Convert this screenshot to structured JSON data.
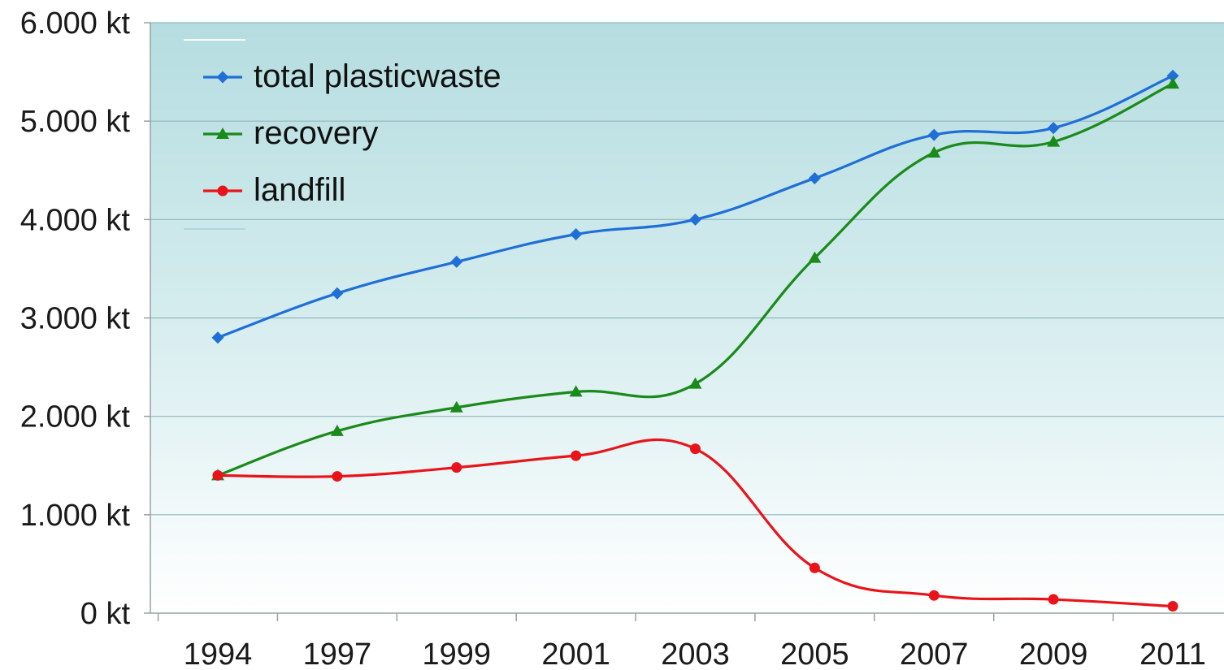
{
  "chart_data": {
    "type": "line",
    "title": "",
    "xlabel": "",
    "ylabel": "",
    "x": [
      "1994",
      "1997",
      "1999",
      "2001",
      "2003",
      "2005",
      "2007",
      "2009",
      "2011"
    ],
    "y_ticks": [
      {
        "value": 0,
        "label": "0 kt"
      },
      {
        "value": 1000,
        "label": "1.000 kt"
      },
      {
        "value": 2000,
        "label": "2.000 kt"
      },
      {
        "value": 3000,
        "label": "3.000 kt"
      },
      {
        "value": 4000,
        "label": "4.000 kt"
      },
      {
        "value": 5000,
        "label": "5.000 kt"
      },
      {
        "value": 6000,
        "label": "6.000 kt"
      }
    ],
    "ylim": [
      0,
      6000
    ],
    "grid": true,
    "legend_position": "top-left",
    "background": {
      "top": "#b5dde0",
      "bottom": "#ffffff"
    },
    "series": [
      {
        "name": "total plastic waste",
        "legend_label": "total plasticwaste",
        "color": "#1f6fd6",
        "marker": "diamond",
        "values": [
          2800,
          3250,
          3570,
          3850,
          4000,
          4420,
          4860,
          4930,
          5460
        ]
      },
      {
        "name": "recovery",
        "legend_label": "recovery",
        "color": "#1a8a1a",
        "marker": "triangle",
        "values": [
          1400,
          1850,
          2090,
          2250,
          2330,
          3610,
          4680,
          4790,
          5380
        ]
      },
      {
        "name": "landfill",
        "legend_label": "landfill",
        "color": "#e8141a",
        "marker": "circle",
        "values": [
          1400,
          1390,
          1480,
          1600,
          1670,
          460,
          180,
          140,
          70
        ]
      }
    ]
  }
}
